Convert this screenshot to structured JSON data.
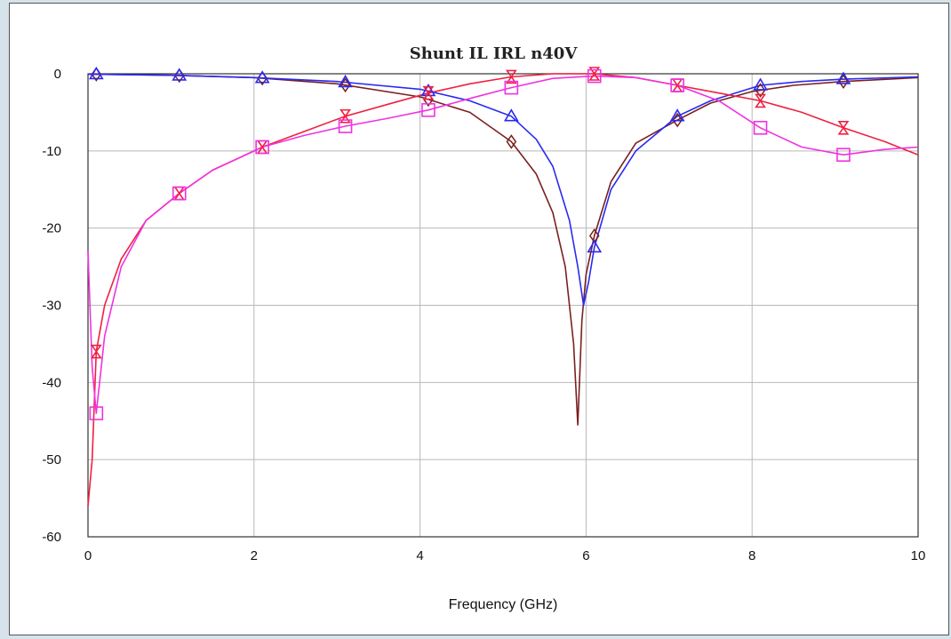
{
  "chart_data": {
    "type": "line",
    "title": "Shunt IL IRL n40V",
    "xlabel": "Frequency (GHz)",
    "ylabel": "",
    "xlim": [
      0,
      10
    ],
    "ylim": [
      -60,
      0
    ],
    "x_ticks": [
      "0",
      "2",
      "4",
      "6",
      "8",
      "10"
    ],
    "y_ticks": [
      "0",
      "-10",
      "-20",
      "-30",
      "-40",
      "-50",
      "-60"
    ],
    "grid": true,
    "legend": "none",
    "series": [
      {
        "color": "#7a2020",
        "marker": "diamond",
        "points": [
          [
            0.0,
            -0.05
          ],
          [
            1.0,
            -0.2
          ],
          [
            2.0,
            -0.5
          ],
          [
            3.0,
            -1.3
          ],
          [
            4.0,
            -3.0
          ],
          [
            4.6,
            -5.0
          ],
          [
            5.1,
            -8.8
          ],
          [
            5.4,
            -13
          ],
          [
            5.6,
            -18
          ],
          [
            5.75,
            -25
          ],
          [
            5.85,
            -35
          ],
          [
            5.9,
            -45.5
          ],
          [
            5.95,
            -32
          ],
          [
            6.0,
            -26
          ],
          [
            6.1,
            -21
          ],
          [
            6.3,
            -14
          ],
          [
            6.6,
            -9
          ],
          [
            7.1,
            -6.0
          ],
          [
            7.5,
            -3.8
          ],
          [
            8.0,
            -2.3
          ],
          [
            8.5,
            -1.5
          ],
          [
            9.1,
            -1.0
          ],
          [
            10.0,
            -0.5
          ]
        ],
        "markers_x": [
          0.1,
          1.1,
          2.1,
          3.1,
          4.1,
          5.1,
          6.1,
          7.1,
          8.1,
          9.1
        ]
      },
      {
        "color": "#2a2af0",
        "marker": "triangle",
        "points": [
          [
            0.0,
            -0.05
          ],
          [
            1.0,
            -0.2
          ],
          [
            2.0,
            -0.5
          ],
          [
            3.0,
            -1.0
          ],
          [
            4.0,
            -2.0
          ],
          [
            4.6,
            -3.5
          ],
          [
            5.1,
            -5.5
          ],
          [
            5.4,
            -8.5
          ],
          [
            5.6,
            -12
          ],
          [
            5.8,
            -19
          ],
          [
            5.9,
            -25
          ],
          [
            5.97,
            -30
          ],
          [
            6.03,
            -27
          ],
          [
            6.1,
            -22.5
          ],
          [
            6.3,
            -15
          ],
          [
            6.6,
            -10
          ],
          [
            7.1,
            -5.5
          ],
          [
            7.5,
            -3.5
          ],
          [
            8.1,
            -1.5
          ],
          [
            8.6,
            -1.0
          ],
          [
            9.1,
            -0.7
          ],
          [
            10.0,
            -0.4
          ]
        ],
        "markers_x": [
          0.1,
          1.1,
          2.1,
          3.1,
          4.1,
          5.1,
          6.1,
          7.1,
          8.1,
          9.1
        ]
      },
      {
        "color": "#f02040",
        "marker": "hourglass",
        "points": [
          [
            0.0,
            -56
          ],
          [
            0.05,
            -50
          ],
          [
            0.1,
            -36
          ],
          [
            0.2,
            -30
          ],
          [
            0.4,
            -24
          ],
          [
            0.7,
            -19
          ],
          [
            1.1,
            -15.5
          ],
          [
            1.5,
            -12.5
          ],
          [
            2.1,
            -9.5
          ],
          [
            2.6,
            -7.5
          ],
          [
            3.1,
            -5.5
          ],
          [
            3.6,
            -4.0
          ],
          [
            4.1,
            -2.5
          ],
          [
            4.6,
            -1.3
          ],
          [
            5.1,
            -0.4
          ],
          [
            5.6,
            0.0
          ],
          [
            6.1,
            0.0
          ],
          [
            6.6,
            -0.5
          ],
          [
            7.1,
            -1.5
          ],
          [
            7.6,
            -2.5
          ],
          [
            8.1,
            -3.5
          ],
          [
            8.6,
            -5.0
          ],
          [
            9.1,
            -7.0
          ],
          [
            9.6,
            -8.8
          ],
          [
            10.0,
            -10.5
          ]
        ],
        "markers_x": [
          0.1,
          1.1,
          2.1,
          3.1,
          4.1,
          5.1,
          6.1,
          7.1,
          8.1,
          9.1
        ]
      },
      {
        "color": "#f032e0",
        "marker": "square",
        "points": [
          [
            0.0,
            -23
          ],
          [
            0.05,
            -38
          ],
          [
            0.1,
            -44
          ],
          [
            0.2,
            -34
          ],
          [
            0.4,
            -25
          ],
          [
            0.7,
            -19
          ],
          [
            1.1,
            -15.5
          ],
          [
            1.5,
            -12.5
          ],
          [
            2.1,
            -9.5
          ],
          [
            2.6,
            -8.0
          ],
          [
            3.1,
            -6.8
          ],
          [
            3.6,
            -5.8
          ],
          [
            4.1,
            -4.7
          ],
          [
            4.6,
            -3.2
          ],
          [
            5.1,
            -1.8
          ],
          [
            5.6,
            -0.6
          ],
          [
            6.1,
            -0.3
          ],
          [
            6.6,
            -0.5
          ],
          [
            7.1,
            -1.5
          ],
          [
            7.6,
            -3.5
          ],
          [
            8.1,
            -7.0
          ],
          [
            8.6,
            -9.5
          ],
          [
            9.1,
            -10.5
          ],
          [
            9.6,
            -9.8
          ],
          [
            10.0,
            -9.5
          ]
        ],
        "markers_x": [
          0.1,
          1.1,
          2.1,
          3.1,
          4.1,
          5.1,
          6.1,
          7.1,
          8.1,
          9.1
        ]
      }
    ]
  }
}
